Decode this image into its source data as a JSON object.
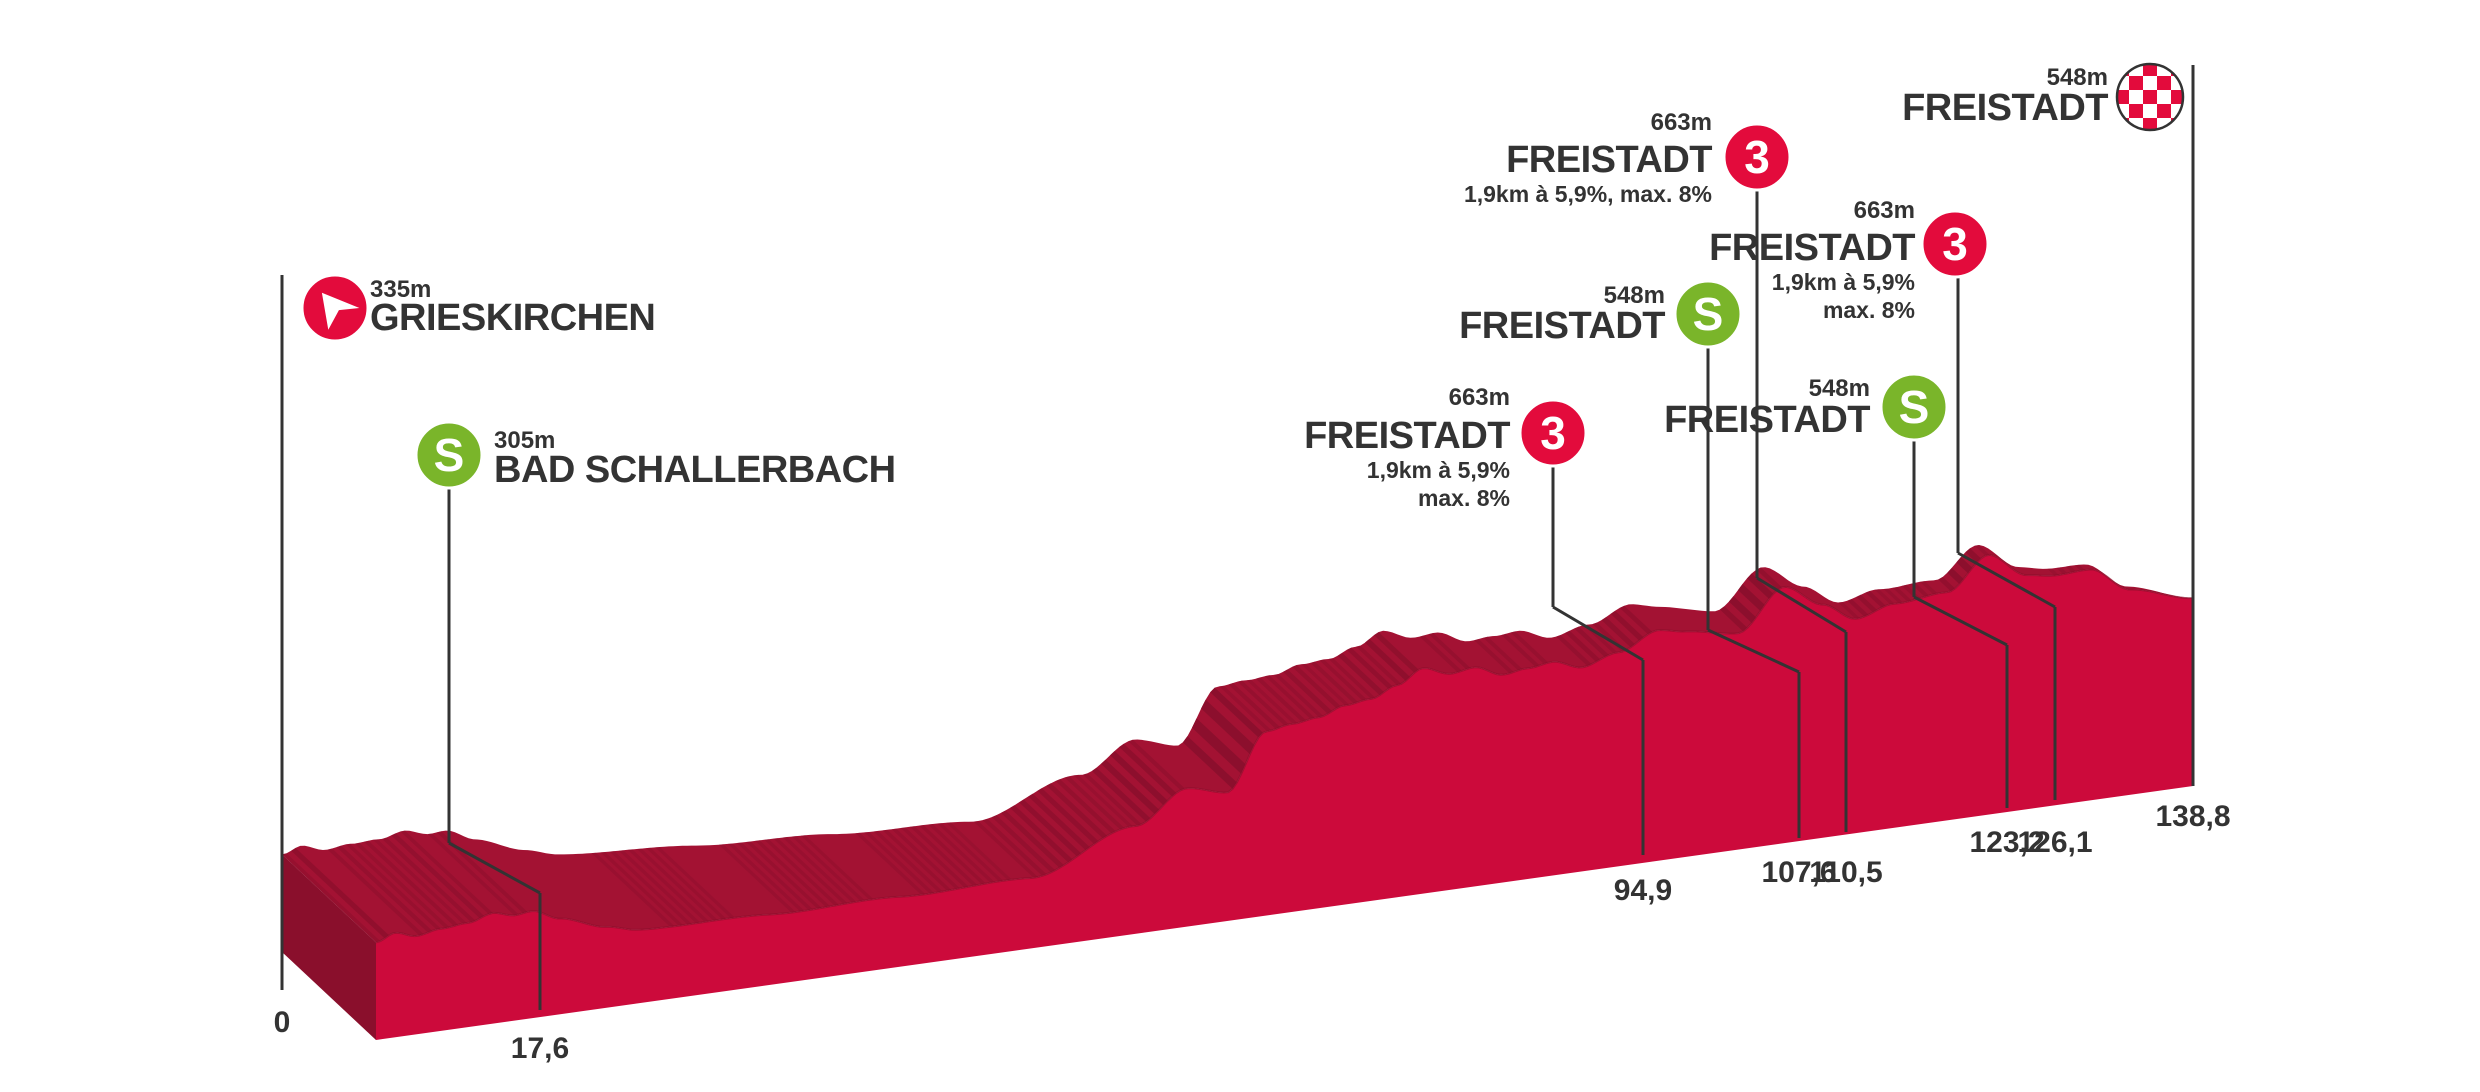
{
  "chart_data": {
    "type": "area",
    "title": "",
    "xlabel": "",
    "ylabel": "",
    "unit_x": "km",
    "unit_alt": "m",
    "colors": {
      "front": "#cc0a3b",
      "top_dark": "#8a0f2c",
      "top_mid": "#a31233",
      "line": "#333333",
      "kom": "#e30b3c",
      "sprint": "#7ab52a",
      "start": "#e30b3c"
    },
    "distance_ticks": [
      "0",
      "17,6",
      "94,9",
      "107,6",
      "110,5",
      "123,2",
      "126,1",
      "138,8"
    ],
    "profile": {
      "x_km": [
        0,
        1.5,
        3,
        5,
        7,
        9,
        10.5,
        12,
        14,
        17.6,
        20,
        30,
        40,
        50,
        58,
        62,
        65,
        68,
        70,
        72,
        74,
        76,
        78,
        80,
        82,
        84,
        86,
        88,
        90,
        92,
        94.9,
        98,
        100,
        104,
        107.6,
        110.5,
        113,
        116,
        120,
        123.2,
        126.1,
        128,
        131,
        134,
        138.8
      ],
      "alt_m": [
        195,
        205,
        200,
        207,
        212,
        222,
        218,
        222,
        212,
        200,
        195,
        205,
        218,
        232,
        285,
        325,
        318,
        385,
        392,
        398,
        410,
        416,
        430,
        448,
        440,
        446,
        436,
        442,
        448,
        440,
        455,
        478,
        475,
        470,
        520,
        498,
        480,
        495,
        505,
        545,
        520,
        518,
        523,
        498,
        485
      ]
    },
    "points": [
      {
        "type": "start",
        "name": "GRIESKIRCHEN",
        "alt": "335m",
        "km": 0
      },
      {
        "type": "sprint",
        "icon": "S",
        "name": "BAD SCHALLERBACH",
        "alt": "305m",
        "km": 17.6
      },
      {
        "type": "kom",
        "icon": "3",
        "name": "FREISTADT",
        "alt": "663m",
        "info": [
          "1,9km à 5,9%",
          "max. 8%"
        ],
        "km": 94.9
      },
      {
        "type": "sprint",
        "icon": "S",
        "name": "FREISTADT",
        "alt": "548m",
        "km": 107.6
      },
      {
        "type": "kom",
        "icon": "3",
        "name": "FREISTADT",
        "alt": "663m",
        "info": [
          "1,9km à 5,9%, max. 8%"
        ],
        "km": 110.5
      },
      {
        "type": "sprint",
        "icon": "S",
        "name": "FREISTADT",
        "alt": "548m",
        "km": 123.2
      },
      {
        "type": "kom",
        "icon": "3",
        "name": "FREISTADT",
        "alt": "663m",
        "info": [
          "1,9km à 5,9%",
          "max. 8%"
        ],
        "km": 126.1
      },
      {
        "type": "finish",
        "name": "FREISTADT",
        "alt": "548m",
        "km": 138.8
      }
    ]
  }
}
